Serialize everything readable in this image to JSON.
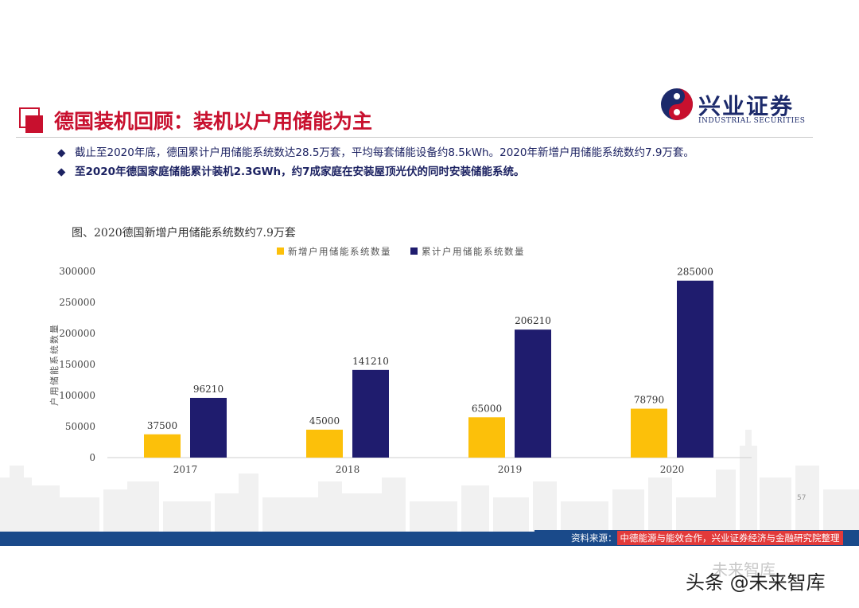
{
  "header": {
    "title": "德国装机回顾：装机以户用储能为主",
    "logo": {
      "name_cn": "兴业证券",
      "name_en": "INDUSTRIAL SECURITIES"
    }
  },
  "bullets": [
    {
      "icon": "diamond-bullet-icon",
      "text": "截止至2020年底，德国累计户用储能系统数达28.5万套，平均每套储能设备约8.5kWh。2020年新增户用储能系统数约7.9万套。"
    },
    {
      "icon": "diamond-bullet-icon",
      "text": "至2020年德国家庭储能累计装机2.3GWh，约7成家庭在安装屋顶光伏的同时安装储能系统。"
    }
  ],
  "figure": {
    "caption": "图、2020德国新增户用储能系统数约7.9万套"
  },
  "chart_data": {
    "type": "bar",
    "categories": [
      "2017",
      "2018",
      "2019",
      "2020"
    ],
    "series": [
      {
        "name": "新增户用储能系统数量",
        "color": "#fcc00a",
        "values": [
          37500,
          45000,
          65000,
          78790
        ]
      },
      {
        "name": "累计户用储能系统数量",
        "color": "#1f1c6e",
        "values": [
          96210,
          141210,
          206210,
          285000
        ]
      }
    ],
    "ylabel": "户用储能系统数量",
    "ylim": [
      0,
      300000
    ],
    "yticks": [
      0,
      50000,
      100000,
      150000,
      200000,
      250000,
      300000
    ],
    "legend_position": "top",
    "grid": false,
    "data_labels": true
  },
  "footer": {
    "page_number": "57",
    "source_label": "资料来源：",
    "source_text": "中德能源与能效合作，兴业证券经济与金融研究院整理"
  },
  "watermark": {
    "text": "头条 @未来智库",
    "faint_text": "未来智库"
  }
}
